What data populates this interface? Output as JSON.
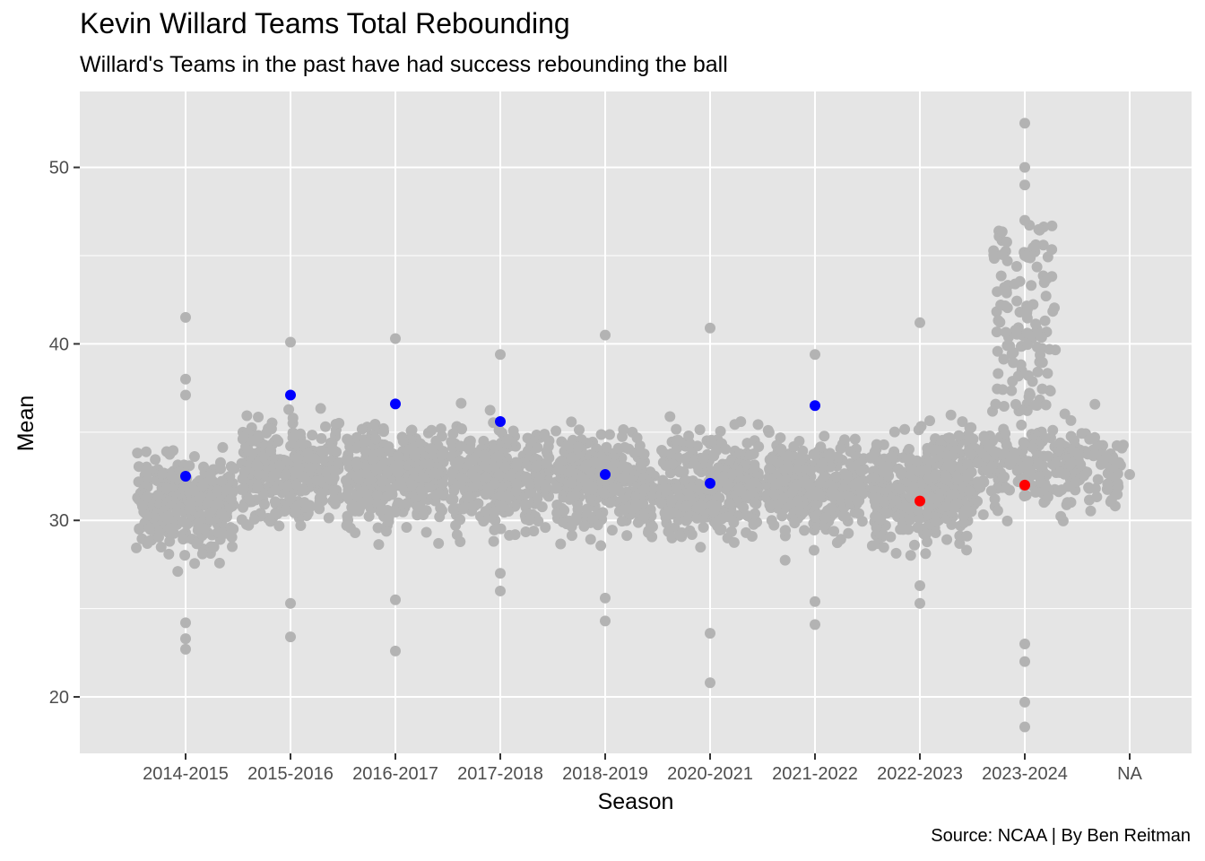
{
  "chart_data": {
    "type": "scatter",
    "title": "Kevin Willard Teams Total Rebounding",
    "subtitle": "Willard's Teams in the past have had success rebounding the ball",
    "caption": "Source: NCAA | By Ben Reitman",
    "xlabel": "Season",
    "ylabel": "Mean",
    "categories": [
      "2014-2015",
      "2015-2016",
      "2016-2017",
      "2017-2018",
      "2018-2019",
      "2020-2021",
      "2021-2022",
      "2022-2023",
      "2023-2024",
      "NA"
    ],
    "yticks": [
      20,
      30,
      40,
      50
    ],
    "ylim": [
      16.8,
      54.3
    ],
    "grid": true,
    "colors": {
      "panel": "#e5e5e5",
      "grid": "#ffffff",
      "all_teams": "#b3b3b3",
      "willard_highlight": "#0000ff",
      "current_highlight": "#ff0000"
    },
    "series": [
      {
        "color": "#0000ff",
        "points": [
          {
            "x": "2014-2015",
            "y": 32.5
          },
          {
            "x": "2015-2016",
            "y": 37.1
          },
          {
            "x": "2016-2017",
            "y": 36.6
          },
          {
            "x": "2017-2018",
            "y": 35.6
          },
          {
            "x": "2018-2019",
            "y": 32.6
          },
          {
            "x": "2020-2021",
            "y": 32.1
          },
          {
            "x": "2021-2022",
            "y": 36.5
          }
        ]
      },
      {
        "color": "#ff0000",
        "points": [
          {
            "x": "2022-2023",
            "y": 31.1
          },
          {
            "x": "2023-2024",
            "y": 32.0
          }
        ]
      }
    ],
    "background_points": [
      {
        "x": "2014-2015",
        "y": 41.5
      },
      {
        "x": "2014-2015",
        "y": 38.0
      },
      {
        "x": "2014-2015",
        "y": 37.1
      },
      {
        "x": "2014-2015",
        "y": 22.7
      },
      {
        "x": "2014-2015",
        "y": 23.3
      },
      {
        "x": "2014-2015",
        "y": 24.2
      },
      {
        "x": "2015-2016",
        "y": 40.1
      },
      {
        "x": "2015-2016",
        "y": 23.4
      },
      {
        "x": "2015-2016",
        "y": 25.3
      },
      {
        "x": "2016-2017",
        "y": 40.3
      },
      {
        "x": "2016-2017",
        "y": 22.6
      },
      {
        "x": "2016-2017",
        "y": 25.5
      },
      {
        "x": "2017-2018",
        "y": 39.4
      },
      {
        "x": "2017-2018",
        "y": 26.0
      },
      {
        "x": "2017-2018",
        "y": 27.0
      },
      {
        "x": "2018-2019",
        "y": 40.5
      },
      {
        "x": "2018-2019",
        "y": 24.3
      },
      {
        "x": "2018-2019",
        "y": 25.6
      },
      {
        "x": "2020-2021",
        "y": 40.9
      },
      {
        "x": "2020-2021",
        "y": 20.8
      },
      {
        "x": "2020-2021",
        "y": 23.6
      },
      {
        "x": "2021-2022",
        "y": 39.4
      },
      {
        "x": "2021-2022",
        "y": 24.1
      },
      {
        "x": "2021-2022",
        "y": 25.4
      },
      {
        "x": "2022-2023",
        "y": 41.2
      },
      {
        "x": "2022-2023",
        "y": 25.3
      },
      {
        "x": "2022-2023",
        "y": 26.3
      },
      {
        "x": "2023-2024",
        "y": 52.5
      },
      {
        "x": "2023-2024",
        "y": 50.0
      },
      {
        "x": "2023-2024",
        "y": 49.0
      },
      {
        "x": "2023-2024",
        "y": 47.0
      },
      {
        "x": "2023-2024",
        "y": 45.0
      },
      {
        "x": "2023-2024",
        "y": 18.3
      },
      {
        "x": "2023-2024",
        "y": 19.7
      },
      {
        "x": "2023-2024",
        "y": 22.0
      },
      {
        "x": "2023-2024",
        "y": 23.0
      },
      {
        "x": "NA",
        "y": 32.6
      }
    ]
  }
}
